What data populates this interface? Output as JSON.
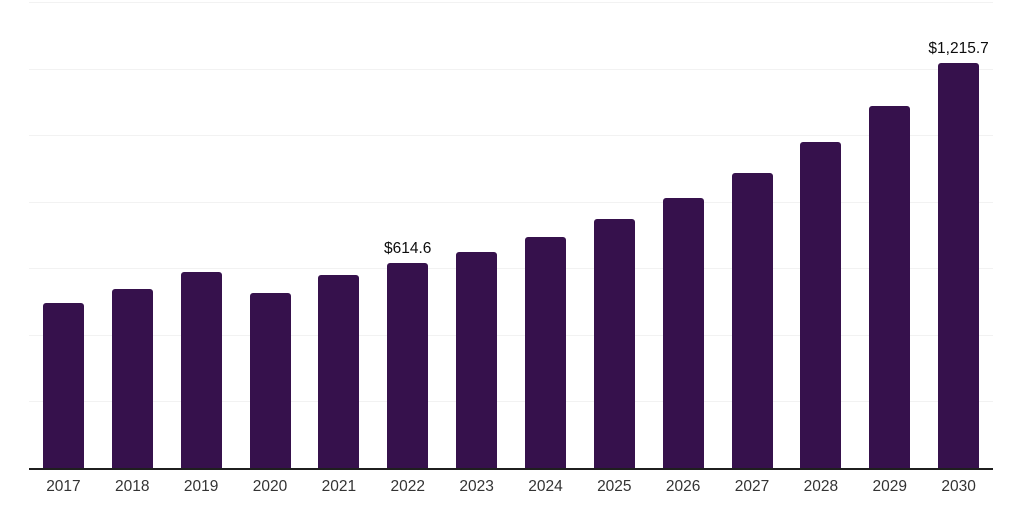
{
  "chart_data": {
    "type": "bar",
    "title": "",
    "xlabel": "",
    "ylabel": "",
    "categories": [
      "2017",
      "2018",
      "2019",
      "2020",
      "2021",
      "2022",
      "2023",
      "2024",
      "2025",
      "2026",
      "2027",
      "2028",
      "2029",
      "2030"
    ],
    "values": [
      497,
      539,
      590,
      527,
      580,
      614.6,
      648,
      695,
      747,
      812,
      886,
      978,
      1088,
      1215.7
    ],
    "data_labels": [
      "",
      "",
      "",
      "",
      "",
      "$614.6",
      "",
      "",
      "",
      "",
      "",
      "",
      "",
      "$1,215.7"
    ],
    "ylim": [
      0,
      1400
    ],
    "gridline_step": 200,
    "grid": true,
    "legend": "none",
    "y_axis_labels_visible": false
  },
  "style": {
    "bar_color": "#36114C",
    "axis_line_color": "#1F1F1F",
    "gridline_color": "#F2F2F2",
    "tick_label_color": "#333333",
    "data_label_color": "#0D0D0D",
    "background_color": "#FFFFFF"
  }
}
